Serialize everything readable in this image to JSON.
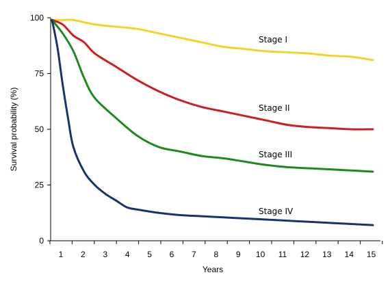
{
  "chart_data": {
    "type": "line",
    "xlabel": "Years",
    "ylabel": "Survival probability (%)",
    "x_ticks": [
      "1",
      "2",
      "3",
      "4",
      "5",
      "6",
      "7",
      "8",
      "9",
      "10",
      "11",
      "12",
      "13",
      "14",
      "15"
    ],
    "y_ticks": [
      "0",
      "25",
      "50",
      "75",
      "100"
    ],
    "xlim": [
      0,
      15
    ],
    "ylim": [
      0,
      100
    ],
    "grid": false,
    "legend": "none",
    "series": [
      {
        "name": "Stage I",
        "color": "#F2D32A",
        "points": [
          [
            0,
            99
          ],
          [
            0.5,
            99
          ],
          [
            1,
            99
          ],
          [
            2,
            97
          ],
          [
            3,
            96
          ],
          [
            4,
            95
          ],
          [
            5,
            93
          ],
          [
            6,
            91
          ],
          [
            7,
            89
          ],
          [
            8,
            87
          ],
          [
            9,
            86
          ],
          [
            10,
            85
          ],
          [
            11,
            84.5
          ],
          [
            12,
            84
          ],
          [
            13,
            83
          ],
          [
            14,
            82.5
          ],
          [
            15,
            81
          ]
        ]
      },
      {
        "name": "Stage II",
        "color": "#CC1F1F",
        "points": [
          [
            0,
            99
          ],
          [
            0.5,
            97
          ],
          [
            1,
            92
          ],
          [
            1.5,
            89
          ],
          [
            2,
            84
          ],
          [
            3,
            78
          ],
          [
            4,
            72
          ],
          [
            5,
            67
          ],
          [
            6,
            63
          ],
          [
            7,
            60
          ],
          [
            8,
            58
          ],
          [
            9,
            56
          ],
          [
            10,
            54
          ],
          [
            11,
            52
          ],
          [
            12,
            51
          ],
          [
            13,
            50.5
          ],
          [
            14,
            50
          ],
          [
            15,
            50
          ]
        ]
      },
      {
        "name": "Stage III",
        "color": "#1E8A1E",
        "points": [
          [
            0,
            99
          ],
          [
            0.5,
            93
          ],
          [
            1,
            85
          ],
          [
            1.5,
            73
          ],
          [
            2,
            64
          ],
          [
            3,
            55
          ],
          [
            4,
            47
          ],
          [
            5,
            42
          ],
          [
            6,
            40
          ],
          [
            7,
            38
          ],
          [
            8,
            37
          ],
          [
            9,
            35.5
          ],
          [
            10,
            34
          ],
          [
            11,
            33
          ],
          [
            12,
            32.5
          ],
          [
            13,
            32
          ],
          [
            14,
            31.5
          ],
          [
            15,
            31
          ]
        ]
      },
      {
        "name": "Stage IV",
        "color": "#17336B",
        "points": [
          [
            0,
            99
          ],
          [
            0.25,
            87
          ],
          [
            0.5,
            70
          ],
          [
            0.75,
            55
          ],
          [
            1,
            42
          ],
          [
            1.5,
            31
          ],
          [
            2,
            25
          ],
          [
            2.5,
            21
          ],
          [
            3,
            18
          ],
          [
            3.5,
            15
          ],
          [
            4,
            14
          ],
          [
            5,
            12.5
          ],
          [
            6,
            11.5
          ],
          [
            7,
            11
          ],
          [
            8,
            10.5
          ],
          [
            9,
            10
          ],
          [
            10,
            9.5
          ],
          [
            11,
            9
          ],
          [
            12,
            8.5
          ],
          [
            13,
            8
          ],
          [
            14,
            7.5
          ],
          [
            15,
            7
          ]
        ]
      }
    ]
  }
}
